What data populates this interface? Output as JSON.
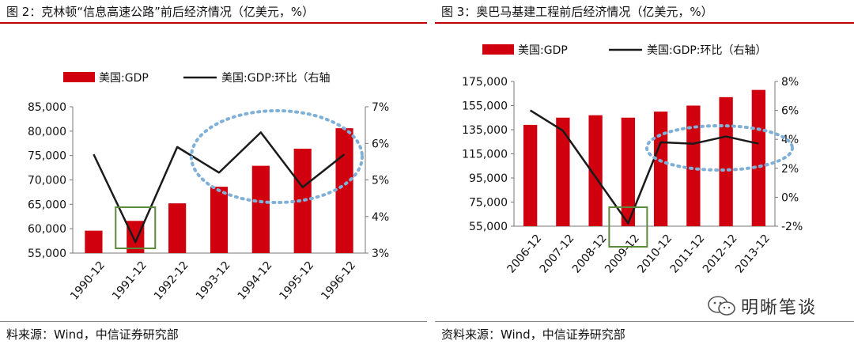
{
  "left": {
    "title": "图 2：克林顿“信息高速公路”前后经济情况（亿美元，%）",
    "source": "料来源：Wind，中信证券研究部"
  },
  "right": {
    "title": "图 3：奥巴马基建工程前后经济情况（亿美元，%）",
    "source": "资料来源：Wind，中信证券研究部"
  },
  "watermark": {
    "text": "明晰笔谈",
    "icon": "wechat-icon"
  },
  "colors": {
    "bar": "#d0000e",
    "line": "#1a1a1a",
    "highlight_box": "#5a8a3a",
    "ellipse": "#7fb0d8",
    "rule": "#c00000"
  },
  "chart_data": [
    {
      "type": "bar",
      "categories": [
        "1990-12",
        "1991-12",
        "1992-12",
        "1993-12",
        "1994-12",
        "1995-12",
        "1996-12"
      ],
      "series": [
        {
          "name": "美国:GDP",
          "type": "bar",
          "axis": "left",
          "values": [
            59600,
            61600,
            65200,
            68600,
            72900,
            76400,
            80600
          ]
        },
        {
          "name": "美国:GDP:环比（右轴",
          "type": "line",
          "axis": "right",
          "values": [
            5.7,
            3.3,
            5.9,
            5.2,
            6.3,
            4.8,
            5.7
          ]
        }
      ],
      "ylim": [
        55000,
        85000
      ],
      "yticks": [
        "55,000",
        "60,000",
        "65,000",
        "70,000",
        "75,000",
        "80,000",
        "85,000"
      ],
      "y2lim": [
        3,
        7
      ],
      "y2ticks": [
        "3%",
        "4%",
        "5%",
        "6%",
        "7%"
      ],
      "legend": "top",
      "grid": false
    },
    {
      "type": "bar",
      "categories": [
        "2006-12",
        "2007-12",
        "2008-12",
        "2009-12",
        "2010-12",
        "2011-12",
        "2012-12",
        "2013-12"
      ],
      "series": [
        {
          "name": "美国:GDP",
          "type": "bar",
          "axis": "left",
          "values": [
            139000,
            145000,
            147000,
            145000,
            150000,
            155000,
            162000,
            168000
          ]
        },
        {
          "name": "美国:GDP:环比（右轴）",
          "type": "line",
          "axis": "right",
          "values": [
            6.0,
            4.6,
            1.4,
            -1.8,
            3.8,
            3.7,
            4.2,
            3.7
          ]
        }
      ],
      "ylim": [
        55000,
        175000
      ],
      "yticks": [
        "55,000",
        "75,000",
        "95,000",
        "115,000",
        "135,000",
        "155,000",
        "175,000"
      ],
      "y2lim": [
        -2,
        8
      ],
      "y2ticks": [
        "-2%",
        "0%",
        "2%",
        "4%",
        "6%",
        "8%"
      ],
      "legend": "top",
      "grid": false
    }
  ]
}
